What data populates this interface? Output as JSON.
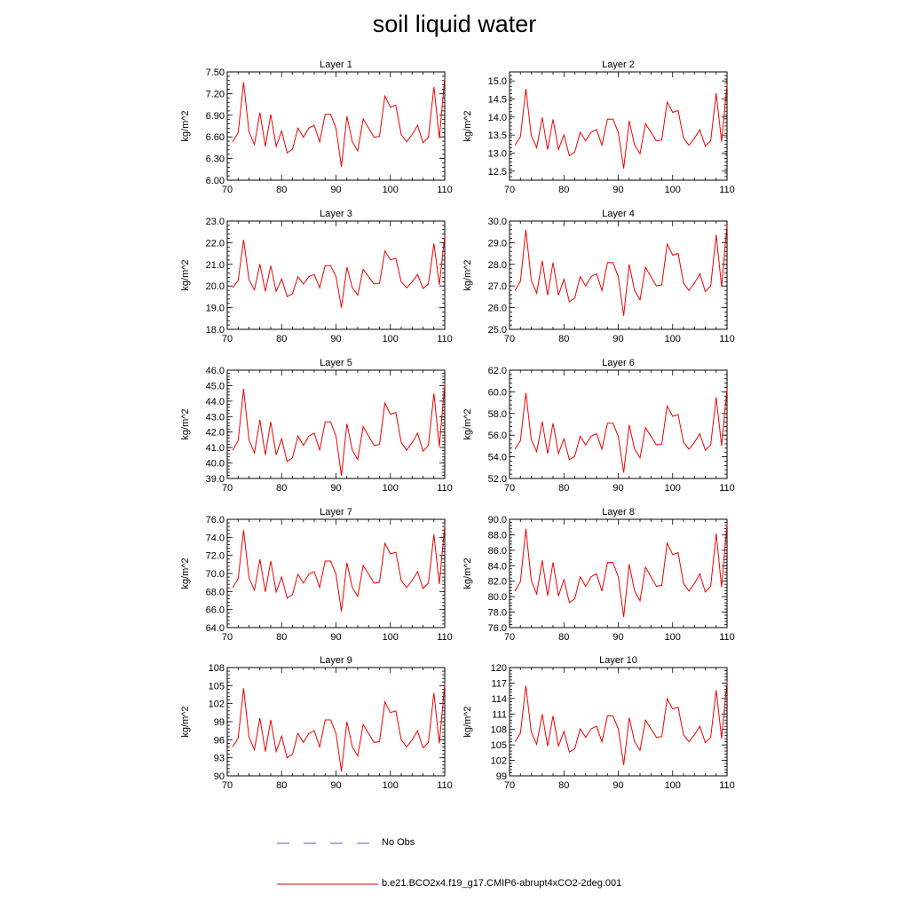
{
  "title": "soil liquid water",
  "legend": {
    "obs": {
      "label": "No Obs",
      "color": "#5a5aaa",
      "style": "dashed"
    },
    "model": {
      "label": "b.e21.BCO2x4.f19_g17.CMIP6-abrupt4xCO2-2deg.001",
      "color": "#ee0000"
    }
  },
  "chart_data": {
    "type": "line",
    "x": [
      71,
      72,
      73,
      74,
      75,
      76,
      77,
      78,
      79,
      80,
      81,
      82,
      83,
      84,
      85,
      86,
      87,
      88,
      89,
      90,
      91,
      92,
      93,
      94,
      95,
      96,
      97,
      98,
      99,
      100,
      101,
      102,
      103,
      104,
      105,
      106,
      107,
      108,
      109,
      110
    ],
    "shape": [
      0.3,
      0.4,
      0.95,
      0.41,
      0.27,
      0.62,
      0.25,
      0.6,
      0.25,
      0.42,
      0.18,
      0.22,
      0.45,
      0.35,
      0.45,
      0.48,
      0.3,
      0.6,
      0.6,
      0.45,
      0.03,
      0.58,
      0.3,
      0.2,
      0.55,
      0.45,
      0.35,
      0.36,
      0.8,
      0.68,
      0.7,
      0.38,
      0.3,
      0.38,
      0.48,
      0.29,
      0.35,
      0.9,
      0.34,
      1.0
    ],
    "panels": [
      {
        "title": "Layer 1",
        "ylabel": "kg/m^2",
        "xlim": [
          70,
          110
        ],
        "ylim": [
          6.0,
          7.5
        ],
        "yticks": [
          "6.00",
          "6.30",
          "6.60",
          "6.90",
          "7.20",
          "7.50"
        ],
        "xticks": [
          "70",
          "80",
          "90",
          "100",
          "110"
        ],
        "ymin": 6.15,
        "ymax": 7.42
      },
      {
        "title": "Layer 2",
        "ylabel": "kg/m^2",
        "xlim": [
          70,
          110
        ],
        "ylim": [
          12.25,
          15.25
        ],
        "yticks": [
          "12.5",
          "13.0",
          "13.5",
          "14.0",
          "14.5",
          "15.0"
        ],
        "ytick_values": [
          12.5,
          13.0,
          13.5,
          14.0,
          14.5,
          15.0
        ],
        "xticks": [
          "70",
          "80",
          "90",
          "100",
          "110"
        ],
        "ymin": 12.5,
        "ymax": 14.9
      },
      {
        "title": "Layer 3",
        "ylabel": "kg/m^2",
        "xlim": [
          70,
          110
        ],
        "ylim": [
          18,
          23
        ],
        "yticks": [
          "18.0",
          "19.0",
          "20.0",
          "21.0",
          "22.0",
          "23.0"
        ],
        "xticks": [
          "70",
          "80",
          "90",
          "100",
          "110"
        ],
        "ymin": 18.9,
        "ymax": 22.3
      },
      {
        "title": "Layer 4",
        "ylabel": "kg/m^2",
        "xlim": [
          70,
          110
        ],
        "ylim": [
          25,
          30
        ],
        "yticks": [
          "25.0",
          "26.0",
          "27.0",
          "28.0",
          "29.0",
          "30.0"
        ],
        "xticks": [
          "70",
          "80",
          "90",
          "100",
          "110"
        ],
        "ymin": 25.5,
        "ymax": 29.8
      },
      {
        "title": "Layer 5",
        "ylabel": "kg/m^2",
        "xlim": [
          70,
          110
        ],
        "ylim": [
          39,
          46
        ],
        "yticks": [
          "39.0",
          "40.0",
          "41.0",
          "42.0",
          "43.0",
          "44.0",
          "45.0",
          "46.0"
        ],
        "xticks": [
          "70",
          "80",
          "90",
          "100",
          "110"
        ],
        "ymin": 39.0,
        "ymax": 45.1
      },
      {
        "title": "Layer 6",
        "ylabel": "kg/m^2",
        "xlim": [
          70,
          110
        ],
        "ylim": [
          52,
          62
        ],
        "yticks": [
          "52.0",
          "54.0",
          "56.0",
          "58.0",
          "60.0",
          "62.0"
        ],
        "xticks": [
          "70",
          "80",
          "90",
          "100",
          "110"
        ],
        "ymin": 52.3,
        "ymax": 60.3
      },
      {
        "title": "Layer 7",
        "ylabel": "kg/m^2",
        "xlim": [
          70,
          110
        ],
        "ylim": [
          64,
          76
        ],
        "yticks": [
          "64.0",
          "66.0",
          "68.0",
          "70.0",
          "72.0",
          "74.0",
          "76.0"
        ],
        "xticks": [
          "70",
          "80",
          "90",
          "100",
          "110"
        ],
        "ymin": 65.5,
        "ymax": 75.3
      },
      {
        "title": "Layer 8",
        "ylabel": "kg/m^2",
        "xlim": [
          70,
          110
        ],
        "ylim": [
          76,
          90
        ],
        "yticks": [
          "76.0",
          "78.0",
          "80.0",
          "82.0",
          "84.0",
          "86.0",
          "88.0",
          "90.0"
        ],
        "xticks": [
          "70",
          "80",
          "90",
          "100",
          "110"
        ],
        "ymin": 77.0,
        "ymax": 89.4
      },
      {
        "title": "Layer 9",
        "ylabel": "kg/m^2",
        "xlim": [
          70,
          110
        ],
        "ylim": [
          90,
          108
        ],
        "yticks": [
          "90",
          "93",
          "96",
          "99",
          "102",
          "105",
          "108"
        ],
        "xticks": [
          "70",
          "80",
          "90",
          "100",
          "110"
        ],
        "ymin": 90.3,
        "ymax": 105.3
      },
      {
        "title": "Layer 10",
        "ylabel": "kg/m^2",
        "xlim": [
          70,
          110
        ],
        "ylim": [
          99,
          120
        ],
        "yticks": [
          "99",
          "102",
          "105",
          "108",
          "111",
          "114",
          "117",
          "120"
        ],
        "xticks": [
          "70",
          "80",
          "90",
          "100",
          "110"
        ],
        "ymin": 100.6,
        "ymax": 117.3
      }
    ]
  }
}
